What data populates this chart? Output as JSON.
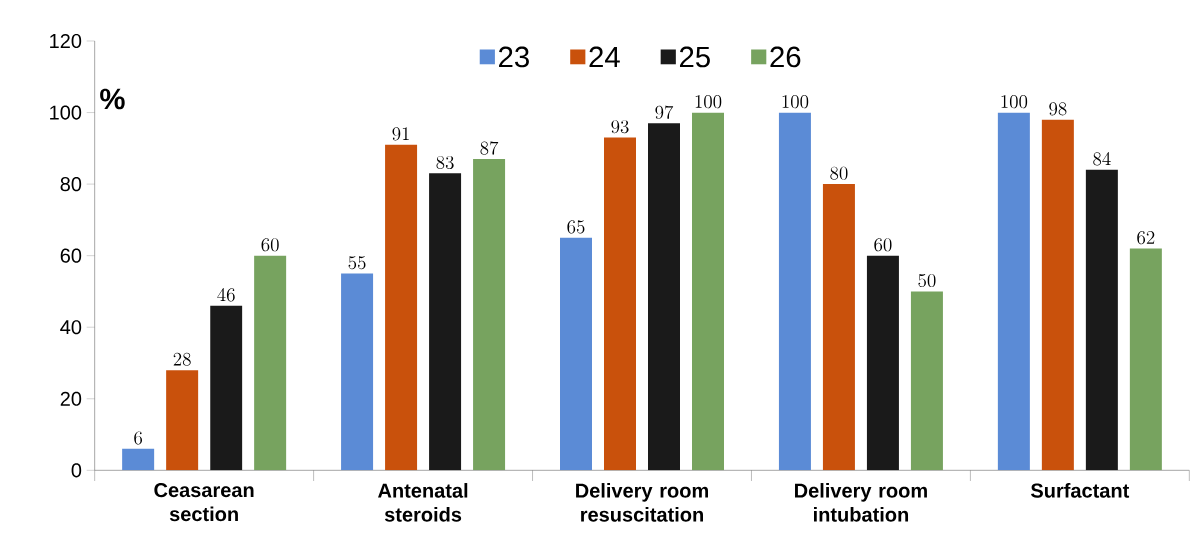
{
  "chart_data": {
    "type": "bar",
    "ylabel": "%",
    "categories": [
      "Ceasarean section",
      "Antenatal steroids",
      "Delivery room resuscitation",
      "Delivery room intubation",
      "Surfactant"
    ],
    "series": [
      {
        "name": "23",
        "color": "#5b8bd6",
        "values": [
          6,
          55,
          65,
          100,
          100
        ]
      },
      {
        "name": "24",
        "color": "#c9510c",
        "values": [
          28,
          91,
          93,
          80,
          98
        ]
      },
      {
        "name": "25",
        "color": "#1a1a1a",
        "values": [
          46,
          83,
          97,
          60,
          84
        ]
      },
      {
        "name": "26",
        "color": "#77a35f",
        "values": [
          60,
          87,
          100,
          50,
          62
        ]
      }
    ],
    "ylim": [
      0,
      120
    ],
    "yticks": [
      0,
      20,
      40,
      60,
      80,
      100,
      120
    ],
    "data_labels": true,
    "legend": "top",
    "grid": false
  }
}
